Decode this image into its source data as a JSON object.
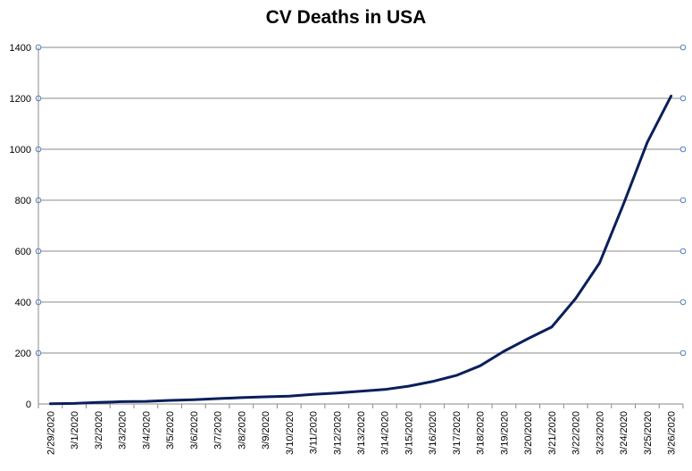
{
  "chart_data": {
    "type": "line",
    "title": "CV Deaths in USA",
    "xlabel": "",
    "ylabel": "",
    "ylim": [
      0,
      1400
    ],
    "y_ticks": [
      0,
      200,
      400,
      600,
      800,
      1000,
      1200,
      1400
    ],
    "grid": true,
    "legend": "none",
    "categories": [
      "2/29/2020",
      "3/1/2020",
      "3/2/2020",
      "3/3/2020",
      "3/4/2020",
      "3/5/2020",
      "3/6/2020",
      "3/7/2020",
      "3/8/2020",
      "3/9/2020",
      "3/10/2020",
      "3/11/2020",
      "3/12/2020",
      "3/13/2020",
      "3/14/2020",
      "3/15/2020",
      "3/16/2020",
      "3/17/2020",
      "3/18/2020",
      "3/19/2020",
      "3/20/2020",
      "3/21/2020",
      "3/22/2020",
      "3/23/2020",
      "3/24/2020",
      "3/25/2020",
      "3/26/2020"
    ],
    "series": [
      {
        "values": [
          1,
          2,
          6,
          9,
          10,
          14,
          17,
          21,
          25,
          28,
          31,
          38,
          43,
          50,
          57,
          70,
          88,
          112,
          150,
          207,
          256,
          302,
          414,
          553,
          783,
          1027,
          1209
        ],
        "color": "#0a1f5c"
      }
    ]
  }
}
